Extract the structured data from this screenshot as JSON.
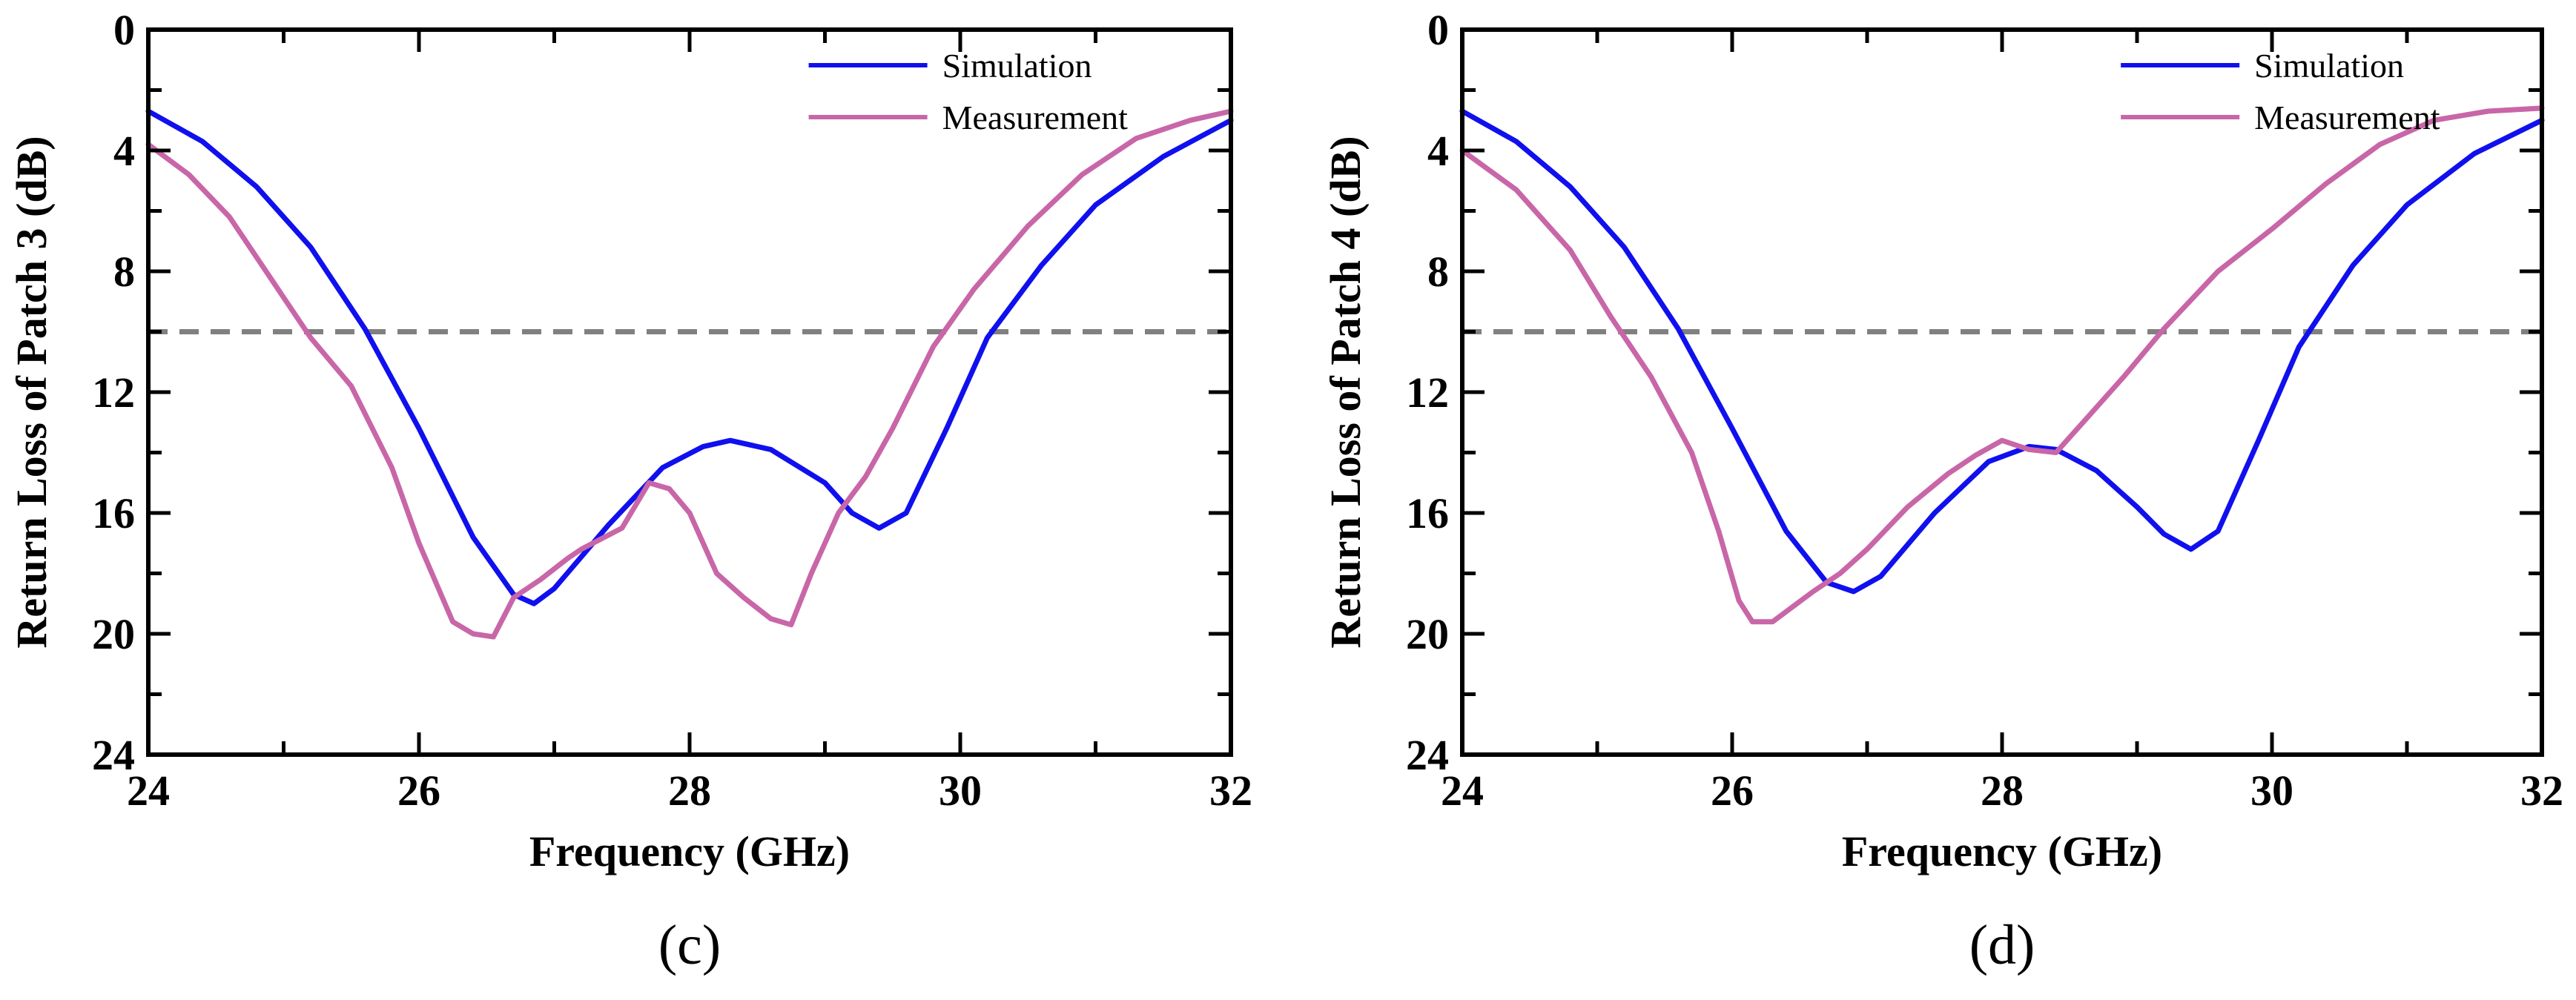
{
  "colors": {
    "simulation": "#1010ee",
    "measurement": "#c866a8",
    "threshold": "#808080",
    "axis": "#000000"
  },
  "chart_data": [
    {
      "type": "line",
      "panel_label": "(c)",
      "xlabel": "Frequency (GHz)",
      "ylabel": "Return Loss of Patch 3 (dB)",
      "xlim": [
        24,
        32
      ],
      "ylim": [
        0,
        24
      ],
      "y_inverted": true,
      "xticks": [
        24,
        26,
        28,
        30,
        32
      ],
      "yticks": [
        0,
        4,
        8,
        12,
        16,
        20,
        24
      ],
      "legend": {
        "position": "top-right",
        "entries": [
          "Simulation",
          "Measurement"
        ]
      },
      "reference_line": {
        "y": 10,
        "style": "dashed"
      },
      "series": [
        {
          "name": "Simulation",
          "x": [
            24.0,
            24.4,
            24.8,
            25.2,
            25.6,
            26.0,
            26.4,
            26.7,
            26.85,
            27.0,
            27.4,
            27.8,
            28.1,
            28.3,
            28.6,
            29.0,
            29.2,
            29.4,
            29.6,
            29.9,
            30.2,
            30.6,
            31.0,
            31.5,
            32.0
          ],
          "values": [
            2.7,
            3.7,
            5.2,
            7.2,
            9.9,
            13.2,
            16.8,
            18.7,
            19.0,
            18.5,
            16.4,
            14.5,
            13.8,
            13.6,
            13.9,
            15.0,
            16.0,
            16.5,
            16.0,
            13.2,
            10.2,
            7.8,
            5.8,
            4.2,
            3.0
          ]
        },
        {
          "name": "Measurement",
          "x": [
            24.0,
            24.3,
            24.6,
            24.9,
            25.2,
            25.5,
            25.8,
            26.0,
            26.25,
            26.4,
            26.55,
            26.7,
            26.9,
            27.1,
            27.2,
            27.5,
            27.7,
            27.85,
            28.0,
            28.2,
            28.4,
            28.6,
            28.75,
            28.9,
            29.1,
            29.3,
            29.5,
            29.8,
            30.1,
            30.5,
            30.9,
            31.3,
            31.7,
            32.0
          ],
          "values": [
            3.8,
            4.8,
            6.2,
            8.2,
            10.2,
            11.8,
            14.5,
            17.0,
            19.6,
            20.0,
            20.1,
            18.8,
            18.2,
            17.5,
            17.2,
            16.5,
            15.0,
            15.2,
            16.0,
            18.0,
            18.8,
            19.5,
            19.7,
            18.0,
            16.0,
            14.8,
            13.2,
            10.5,
            8.6,
            6.5,
            4.8,
            3.6,
            3.0,
            2.7
          ]
        }
      ]
    },
    {
      "type": "line",
      "panel_label": "(d)",
      "xlabel": "Frequency (GHz)",
      "ylabel": "Return Loss of Patch 4 (dB)",
      "xlim": [
        24,
        32
      ],
      "ylim": [
        0,
        24
      ],
      "y_inverted": true,
      "xticks": [
        24,
        26,
        28,
        30,
        32
      ],
      "yticks": [
        0,
        4,
        8,
        12,
        16,
        20,
        24
      ],
      "legend": {
        "position": "top-right",
        "entries": [
          "Simulation",
          "Measurement"
        ]
      },
      "reference_line": {
        "y": 10,
        "style": "dashed"
      },
      "series": [
        {
          "name": "Simulation",
          "x": [
            24.0,
            24.4,
            24.8,
            25.2,
            25.6,
            26.0,
            26.4,
            26.7,
            26.9,
            27.1,
            27.5,
            27.9,
            28.2,
            28.4,
            28.7,
            29.0,
            29.2,
            29.4,
            29.6,
            29.9,
            30.2,
            30.6,
            31.0,
            31.5,
            32.0
          ],
          "values": [
            2.7,
            3.7,
            5.2,
            7.2,
            9.9,
            13.2,
            16.6,
            18.3,
            18.6,
            18.1,
            16.0,
            14.3,
            13.8,
            13.9,
            14.6,
            15.8,
            16.7,
            17.2,
            16.6,
            13.6,
            10.5,
            7.8,
            5.8,
            4.1,
            3.0
          ]
        },
        {
          "name": "Measurement",
          "x": [
            24.0,
            24.4,
            24.8,
            25.1,
            25.4,
            25.7,
            25.9,
            26.05,
            26.15,
            26.3,
            26.45,
            26.6,
            26.8,
            27.0,
            27.3,
            27.6,
            27.8,
            28.0,
            28.2,
            28.4,
            28.6,
            28.9,
            29.2,
            29.6,
            30.0,
            30.4,
            30.8,
            31.2,
            31.6,
            32.0
          ],
          "values": [
            4.0,
            5.3,
            7.3,
            9.5,
            11.5,
            14.0,
            16.6,
            18.9,
            19.6,
            19.6,
            19.1,
            18.6,
            18.0,
            17.2,
            15.8,
            14.7,
            14.1,
            13.6,
            13.9,
            14.0,
            13.0,
            11.5,
            9.9,
            8.0,
            6.6,
            5.1,
            3.8,
            3.0,
            2.7,
            2.6
          ]
        }
      ]
    }
  ]
}
